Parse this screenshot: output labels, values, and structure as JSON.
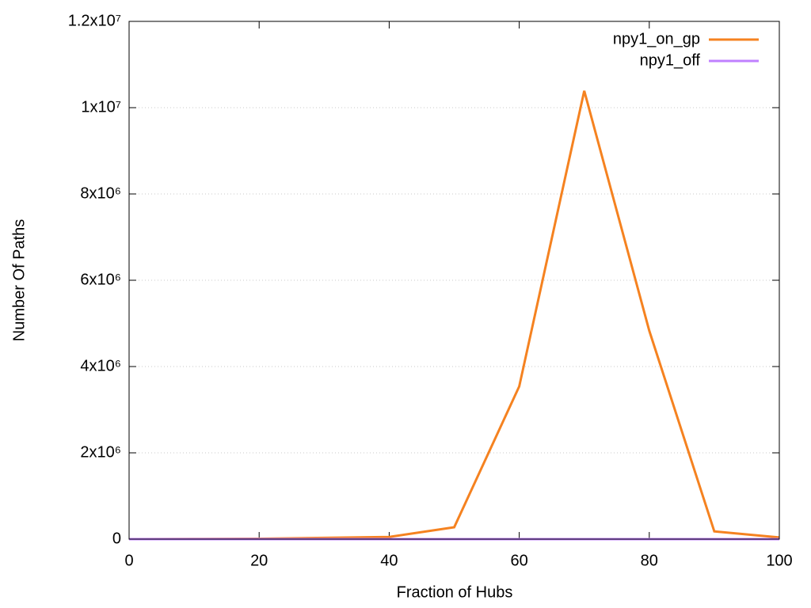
{
  "chart_data": {
    "type": "line",
    "xlabel": "Fraction of Hubs",
    "ylabel": "Number Of Paths",
    "x": [
      0,
      10,
      20,
      30,
      40,
      50,
      60,
      70,
      80,
      90,
      100
    ],
    "series": [
      {
        "name": "npy1_on_gp",
        "color": "#f58220",
        "values": [
          0,
          5000,
          10000,
          30000,
          50000,
          275000,
          3540000,
          10390000,
          4830000,
          180000,
          40000
        ]
      },
      {
        "name": "npy1_off",
        "color": "#c080ff",
        "values": [
          0,
          0,
          0,
          0,
          0,
          0,
          0,
          0,
          0,
          0,
          0
        ]
      }
    ],
    "xlim": [
      0,
      100
    ],
    "xticks": [
      0,
      20,
      40,
      60,
      80,
      100
    ],
    "ylim": [
      0,
      12000000
    ],
    "yticks": [
      0,
      {
        "value": 2000000,
        "label": "2x10⁶"
      },
      {
        "value": 4000000,
        "label": "4x10⁶"
      },
      {
        "value": 6000000,
        "label": "6x10⁶"
      },
      {
        "value": 8000000,
        "label": "8x10⁶"
      },
      {
        "value": 10000000,
        "label": "1x10⁷"
      },
      {
        "value": 12000000,
        "label": "1.2x10⁷"
      }
    ],
    "grid": true,
    "legend": "top-right"
  }
}
